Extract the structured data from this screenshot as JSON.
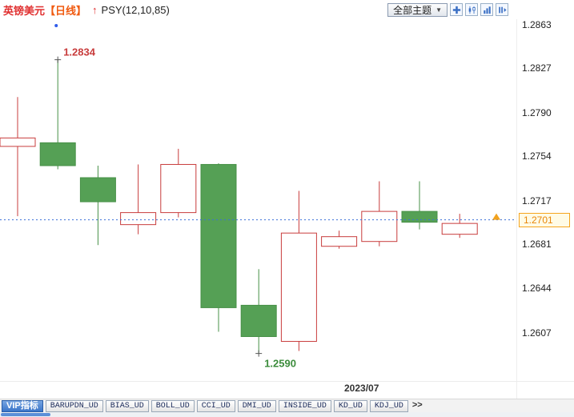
{
  "topbar": {
    "symbol": "英镑美元",
    "period": "【日线】",
    "trend_arrow": "↑",
    "indicator": "PSY(12,10,85)",
    "theme_button": "全部主题",
    "theme_caret": "▼",
    "icons": [
      "add-indicator-icon",
      "candlestick-view-icon",
      "bar-chart-view-icon",
      "playback-view-icon"
    ]
  },
  "tabbar": {
    "tabs": [
      {
        "name": "tab-vip-indicators",
        "label": "VIP指标",
        "active": true,
        "more": false
      },
      {
        "name": "tab-barupdn-ud",
        "label": "BARUPDN_UD",
        "active": false,
        "more": false
      },
      {
        "name": "tab-bias-ud",
        "label": "BIAS_UD",
        "active": false,
        "more": false
      },
      {
        "name": "tab-boll-ud",
        "label": "BOLL_UD",
        "active": false,
        "more": false
      },
      {
        "name": "tab-cci-ud",
        "label": "CCI_UD",
        "active": false,
        "more": false
      },
      {
        "name": "tab-dmi-ud",
        "label": "DMI_UD",
        "active": false,
        "more": false
      },
      {
        "name": "tab-inside-ud",
        "label": "INSIDE_UD",
        "active": false,
        "more": false
      },
      {
        "name": "tab-kd-ud",
        "label": "KD_UD",
        "active": false,
        "more": false
      },
      {
        "name": "tab-kdj-ud",
        "label": "KDJ_UD",
        "active": false,
        "more": false
      },
      {
        "name": "tab-more",
        "label": ">>",
        "active": false,
        "more": true
      }
    ]
  },
  "chart_data": {
    "type": "candlestick",
    "title": "英镑美元 日线 PSY(12,10,85)",
    "x_axis_label": "2023/07",
    "ylim": [
      1.2607,
      1.2863
    ],
    "y_ticks": [
      1.2863,
      1.2827,
      1.279,
      1.2754,
      1.2717,
      1.2681,
      1.2644,
      1.2607
    ],
    "y_tick_labels": [
      "1.2863",
      "1.2827",
      "1.2790",
      "1.2754",
      "1.2717",
      "1.2681",
      "1.2644",
      "1.2607"
    ],
    "current_price": "1.2701",
    "high_annotation": {
      "candle_index": 1,
      "price": 1.2834,
      "label": "1.2834"
    },
    "low_annotation": {
      "candle_index": 6,
      "price": 1.259,
      "label": "1.2590"
    },
    "colors": {
      "up": "#c83c3c",
      "down": "#55a055",
      "down_border": "#479047",
      "dotted_line": "#3a6fd8",
      "low_text": "#3c8c3c",
      "badge": "#f5a51e"
    },
    "candles": [
      {
        "open": 1.2762,
        "close": 1.2769,
        "high": 1.2803,
        "low": 1.2704
      },
      {
        "open": 1.2765,
        "close": 1.2746,
        "high": 1.2834,
        "low": 1.2743
      },
      {
        "open": 1.2736,
        "close": 1.2716,
        "high": 1.2746,
        "low": 1.268
      },
      {
        "open": 1.2697,
        "close": 1.2707,
        "high": 1.2747,
        "low": 1.2689
      },
      {
        "open": 1.2707,
        "close": 1.2747,
        "high": 1.276,
        "low": 1.2703
      },
      {
        "open": 1.2747,
        "close": 1.2628,
        "high": 1.2748,
        "low": 1.2608
      },
      {
        "open": 1.263,
        "close": 1.2604,
        "high": 1.266,
        "low": 1.259
      },
      {
        "open": 1.26,
        "close": 1.269,
        "high": 1.2725,
        "low": 1.2592
      },
      {
        "open": 1.2679,
        "close": 1.2687,
        "high": 1.2692,
        "low": 1.2677
      },
      {
        "open": 1.2683,
        "close": 1.2708,
        "high": 1.2733,
        "low": 1.2679
      },
      {
        "open": 1.2708,
        "close": 1.2699,
        "high": 1.2733,
        "low": 1.2693
      },
      {
        "open": 1.2689,
        "close": 1.2698,
        "high": 1.2706,
        "low": 1.2686
      }
    ]
  }
}
